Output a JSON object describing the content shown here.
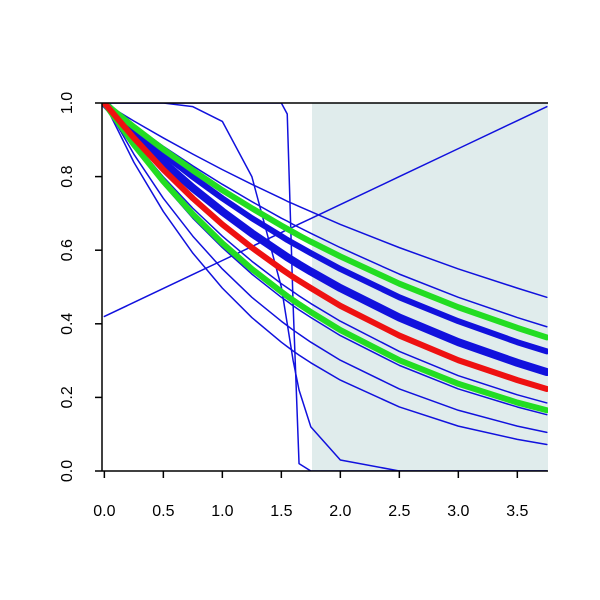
{
  "chart_data": {
    "type": "line",
    "x": [
      0,
      0.25,
      0.5,
      0.75,
      1,
      1.25,
      1.5,
      1.55,
      1.6,
      1.65,
      1.75,
      2,
      2.5,
      3,
      3.5,
      3.75
    ],
    "xlim": [
      -0.02,
      3.76
    ],
    "ylim": [
      0,
      1
    ],
    "xticks": [
      {
        "value": 0,
        "label": "0.0"
      },
      {
        "value": 0.5,
        "label": "0.5"
      },
      {
        "value": 1,
        "label": "1.0"
      },
      {
        "value": 1.5,
        "label": "1.5"
      },
      {
        "value": 2,
        "label": "2.0"
      },
      {
        "value": 2.5,
        "label": "2.5"
      },
      {
        "value": 3,
        "label": "3.0"
      },
      {
        "value": 3.5,
        "label": "3.5"
      }
    ],
    "yticks": [
      {
        "value": 0,
        "label": "0.0"
      },
      {
        "value": 0.2,
        "label": "0.2"
      },
      {
        "value": 0.4,
        "label": "0.4"
      },
      {
        "value": 0.6,
        "label": "0.6"
      },
      {
        "value": 0.8,
        "label": "0.8"
      },
      {
        "value": 1,
        "label": "1.0"
      }
    ],
    "shaded_x": [
      1.76,
      3.76
    ],
    "shade_color": "#e0ecec",
    "series": [
      {
        "color": "#1111dd",
        "line_width": 1.5,
        "values": [
          1,
          0.951,
          0.905,
          0.861,
          0.819,
          0.779,
          0.741,
          0.733,
          0.726,
          0.719,
          0.705,
          0.67,
          0.607,
          0.549,
          0.497,
          0.472
        ]
      },
      {
        "color": "#1111dd",
        "line_width": 1.5,
        "values": [
          1,
          0.939,
          0.882,
          0.829,
          0.779,
          0.732,
          0.687,
          0.679,
          0.67,
          0.662,
          0.646,
          0.607,
          0.535,
          0.472,
          0.417,
          0.392
        ]
      },
      {
        "color": "#1111dd",
        "line_width": 6,
        "values": [
          1,
          0.928,
          0.861,
          0.799,
          0.741,
          0.687,
          0.638,
          0.628,
          0.619,
          0.61,
          0.592,
          0.549,
          0.472,
          0.407,
          0.35,
          0.325
        ]
      },
      {
        "color": "#1111dd",
        "line_width": 8,
        "values": [
          1,
          0.916,
          0.839,
          0.769,
          0.705,
          0.646,
          0.592,
          0.581,
          0.571,
          0.561,
          0.542,
          0.497,
          0.417,
          0.35,
          0.294,
          0.269
        ]
      },
      {
        "color": "#1111dd",
        "line_width": 1.5,
        "values": [
          1,
          0.894,
          0.799,
          0.714,
          0.638,
          0.57,
          0.509,
          0.498,
          0.487,
          0.476,
          0.455,
          0.407,
          0.325,
          0.259,
          0.207,
          0.185
        ]
      },
      {
        "color": "#1111dd",
        "line_width": 1.5,
        "values": [
          1,
          0.882,
          0.779,
          0.687,
          0.607,
          0.535,
          0.472,
          0.461,
          0.449,
          0.438,
          0.417,
          0.368,
          0.287,
          0.223,
          0.174,
          0.153
        ]
      },
      {
        "color": "#1111dd",
        "line_width": 1.5,
        "values": [
          1,
          0.861,
          0.741,
          0.638,
          0.549,
          0.472,
          0.407,
          0.395,
          0.383,
          0.372,
          0.35,
          0.301,
          0.223,
          0.165,
          0.122,
          0.105
        ]
      },
      {
        "color": "#1111dd",
        "line_width": 1.5,
        "values": [
          1,
          0.839,
          0.705,
          0.592,
          0.497,
          0.417,
          0.35,
          0.338,
          0.326,
          0.315,
          0.294,
          0.247,
          0.174,
          0.122,
          0.086,
          0.072
        ]
      },
      {
        "color": "#1111dd",
        "line_width": 1.5,
        "values": [
          1,
          1,
          1,
          1,
          1,
          1,
          1,
          0.97,
          0.45,
          0.02,
          0,
          0,
          0,
          0,
          0,
          0
        ]
      },
      {
        "color": "#1111dd",
        "line_width": 1.5,
        "values": [
          1,
          1,
          1,
          0.99,
          0.95,
          0.8,
          0.5,
          0.4,
          0.3,
          0.22,
          0.12,
          0.03,
          0,
          0,
          0,
          0
        ]
      },
      {
        "color": "#1111dd",
        "line_width": 1.5,
        "values": [
          0.42,
          0.458,
          0.496,
          0.534,
          0.572,
          0.61,
          0.648,
          0.656,
          0.663,
          0.671,
          0.686,
          0.724,
          0.8,
          0.876,
          0.952,
          0.99
        ]
      },
      {
        "color": "#22dd22",
        "line_width": 6,
        "values": [
          1,
          0.935,
          0.874,
          0.817,
          0.763,
          0.714,
          0.667,
          0.658,
          0.649,
          0.64,
          0.623,
          0.583,
          0.509,
          0.445,
          0.389,
          0.363
        ]
      },
      {
        "color": "#22dd22",
        "line_width": 6,
        "values": [
          1,
          0.887,
          0.787,
          0.698,
          0.619,
          0.549,
          0.487,
          0.475,
          0.464,
          0.453,
          0.432,
          0.383,
          0.301,
          0.237,
          0.186,
          0.165
        ]
      },
      {
        "color": "#ee1111",
        "line_width": 6,
        "values": [
          1,
          0.905,
          0.819,
          0.741,
          0.67,
          0.607,
          0.549,
          0.538,
          0.527,
          0.517,
          0.497,
          0.449,
          0.368,
          0.301,
          0.247,
          0.223
        ]
      }
    ]
  }
}
